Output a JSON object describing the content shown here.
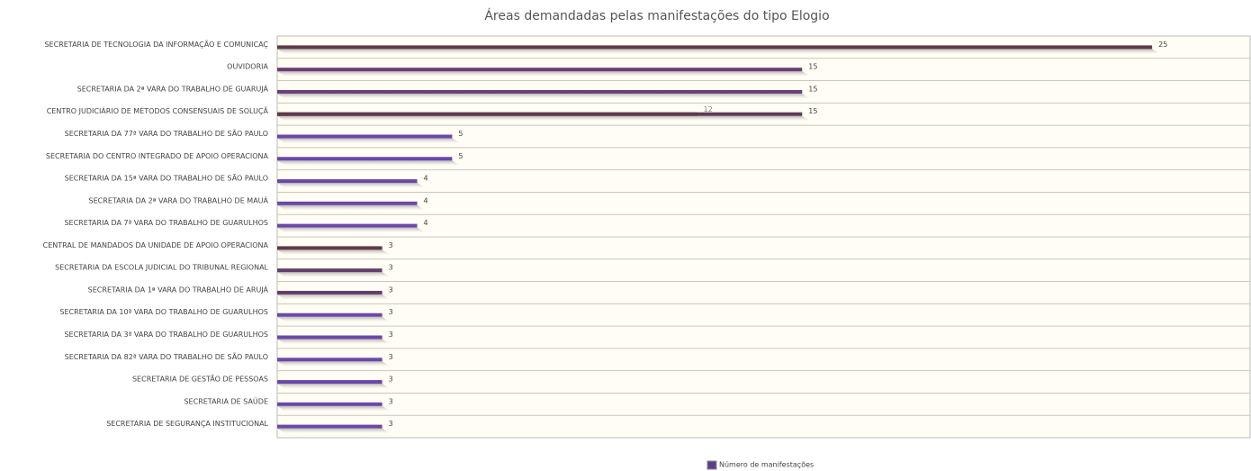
{
  "chart_data": {
    "type": "hbar",
    "title": "Áreas demandadas pelas manifestações do tipo Elogio",
    "categories": [
      "SECRETARIA DE TECNOLOGIA DA INFORMAÇÃO E COMUNICAÇ",
      "OUVIDORIA",
      "SECRETARIA DA 2ª VARA DO TRABALHO DE GUARUJÁ",
      "CENTRO JUDICIÁRIO DE MÉTODOS CONSENSUAIS DE SOLUÇÃ",
      "SECRETARIA DA 77ª VARA DO TRABALHO DE SÃO PAULO",
      "SECRETARIA DO CENTRO INTEGRADO DE APOIO OPERACIONA",
      "SECRETARIA DA 15ª VARA DO TRABALHO DE SÃO PAULO",
      "SECRETARIA DA 2ª VARA DO TRABALHO DE MAUÁ",
      "SECRETARIA DA 7ª VARA DO TRABALHO DE GUARULHOS",
      "CENTRAL DE MANDADOS DA UNIDADE DE APOIO OPERACIONA",
      "SECRETARIA DA ESCOLA JUDICIAL DO TRIBUNAL REGIONAL",
      "SECRETARIA DA 1ª VARA DO TRABALHO DE ARUJÁ",
      "SECRETARIA DA 10ª VARA DO TRABALHO DE GUARULHOS",
      "SECRETARIA DA 3ª VARA DO TRABALHO DE GUARULHOS",
      "SECRETARIA DA 82ª VARA DO TRABALHO DE SÃO PAULO",
      "SECRETARIA DE GESTÃO DE PESSOAS",
      "SECRETARIA DE SAÚDE",
      "SECRETARIA DE SEGURANÇA INSTITUCIONAL"
    ],
    "series": [
      {
        "name": "Número de manifestações",
        "color": "#5b3f8c",
        "values": [
          25,
          15,
          15,
          15,
          5,
          5,
          4,
          4,
          4,
          3,
          3,
          3,
          3,
          3,
          3,
          3,
          3,
          3
        ],
        "colors": [
          "#5e3a48",
          "#6a3f6e",
          "#6a3f78",
          "#5e3a58",
          "#6a48a8",
          "#6a48a8",
          "#6a48a8",
          "#6a48a8",
          "#6a48a8",
          "#5e3a48",
          "#623e6a",
          "#623e6a",
          "#6a48a8",
          "#6a48a8",
          "#6a48a8",
          "#6a48a8",
          "#6a48a8",
          "#6a48a8"
        ]
      }
    ],
    "annotations": [
      {
        "category": "CENTRO JUDICIÁRIO DE MÉTODOS CONSENSUAIS DE SOLUÇÃ",
        "value": 12,
        "color": "#5e3a48"
      }
    ],
    "xlim": [
      0,
      27.8
    ]
  }
}
